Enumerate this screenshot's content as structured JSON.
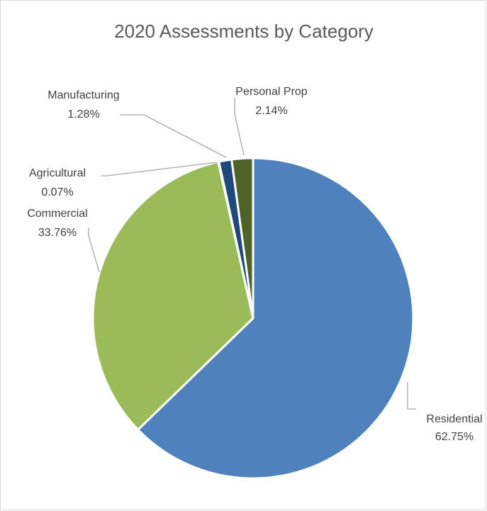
{
  "chart_data": {
    "type": "pie",
    "title": "2020 Assessments by Category",
    "slices": [
      {
        "name": "Residential",
        "value": 62.75,
        "label": "62.75%",
        "color": "#4f81bd"
      },
      {
        "name": "Commercial",
        "value": 33.76,
        "label": "33.76%",
        "color": "#9bbb59"
      },
      {
        "name": "Agricultural",
        "value": 0.07,
        "label": "0.07%",
        "color": "#8064a2"
      },
      {
        "name": "Manufacturing",
        "value": 1.28,
        "label": "1.28%",
        "color": "#1f497d"
      },
      {
        "name": "Personal Prop",
        "value": 2.14,
        "label": "2.14%",
        "color": "#4f6228"
      }
    ],
    "start_angle": "12 o'clock",
    "direction": "clockwise",
    "legend": "none",
    "data_labels": "outside with leader lines"
  }
}
